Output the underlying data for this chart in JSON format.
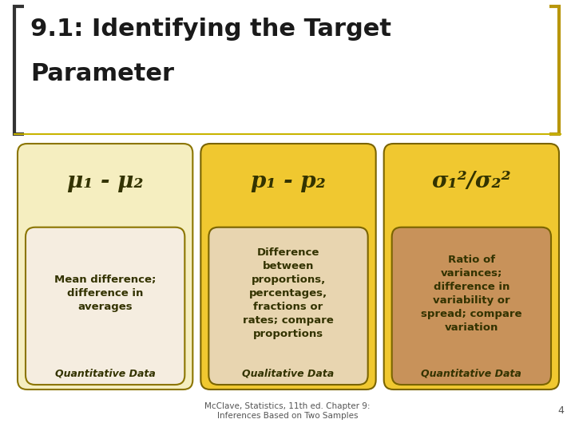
{
  "title_line1": "9.1: Identifying the Target",
  "title_line2": "Parameter",
  "background_color": "#ffffff",
  "title_color": "#1a1a1a",
  "title_fontsize": 22,
  "bracket_color_left": "#333333",
  "bracket_color_right": "#b8960c",
  "separator_color": "#c8b400",
  "cards": [
    {
      "header_text": "μ₁ - μ₂",
      "outer_bg": "#f5eec0",
      "outer_border": "#8b7500",
      "inner_bg": "#f5ede0",
      "inner_border": "#8b7500",
      "body_text": "Mean difference;\ndifference in\naverages",
      "footer_text": "Quantitative Data",
      "text_color": "#333300",
      "header_style": "italic"
    },
    {
      "header_text": "p₁ - p₂",
      "outer_bg": "#f0c830",
      "outer_border": "#7a6400",
      "inner_bg": "#e8d5b0",
      "inner_border": "#7a6400",
      "body_text": "Difference\nbetween\nproportions,\npercentages,\nfractions or\nrates; compare\nproportions",
      "footer_text": "Qualitative Data",
      "text_color": "#333300",
      "header_style": "italic"
    },
    {
      "header_text": "σ₁²/σ₂²",
      "outer_bg": "#f0c830",
      "outer_border": "#7a6400",
      "inner_bg": "#c8925a",
      "inner_border": "#7a6400",
      "body_text": "Ratio of\nvariances;\ndifference in\nvariability or\nspread; compare\nvariation",
      "footer_text": "Quantitative Data",
      "text_color": "#333300",
      "header_style": "italic"
    }
  ],
  "footnote": "McClave, Statistics, 11th ed. Chapter 9:\nInferences Based on Two Samples",
  "page_number": "4"
}
